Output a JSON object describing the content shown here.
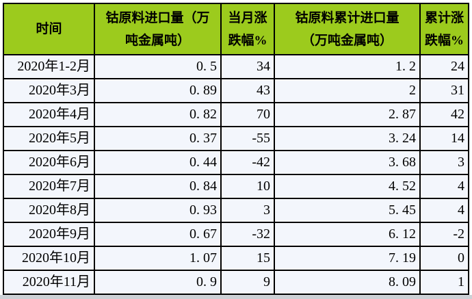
{
  "table": {
    "columns": [
      {
        "label": "时间"
      },
      {
        "label": "钴原料进口量（万\n吨金属吨）"
      },
      {
        "label": "当月涨\n跌幅%"
      },
      {
        "label": "钴原料累计进口量\n（万吨金属吨）"
      },
      {
        "label": "累计涨\n跌幅%"
      }
    ],
    "rows": [
      [
        "2020年1-2月",
        "0. 5",
        "34",
        "1. 2",
        "24"
      ],
      [
        "2020年3月",
        "0. 89",
        "43",
        "2",
        "31"
      ],
      [
        "2020年4月",
        "0. 82",
        "70",
        "2. 87",
        "42"
      ],
      [
        "2020年5月",
        "0. 37",
        "-55",
        "3. 24",
        "14"
      ],
      [
        "2020年6月",
        "0. 44",
        "-42",
        "3. 68",
        "3"
      ],
      [
        "2020年7月",
        "0. 84",
        "10",
        "4. 52",
        "4"
      ],
      [
        "2020年8月",
        "0. 93",
        "3",
        "5. 45",
        "4"
      ],
      [
        "2020年9月",
        "0. 67",
        "-32",
        "6. 12",
        "-2"
      ],
      [
        "2020年10月",
        "1. 07",
        "15",
        "7. 19",
        "0"
      ],
      [
        "2020年11月",
        "0. 9",
        "9",
        "8. 09",
        "1"
      ]
    ]
  },
  "chart_data": {
    "type": "table",
    "title": "",
    "columns": [
      "时间",
      "钴原料进口量（万吨金属吨）",
      "当月涨跌幅%",
      "钴原料累计进口量（万吨金属吨）",
      "累计涨跌幅%"
    ],
    "rows": [
      [
        "2020年1-2月",
        0.5,
        34,
        1.2,
        24
      ],
      [
        "2020年3月",
        0.89,
        43,
        2,
        31
      ],
      [
        "2020年4月",
        0.82,
        70,
        2.87,
        42
      ],
      [
        "2020年5月",
        0.37,
        -55,
        3.24,
        14
      ],
      [
        "2020年6月",
        0.44,
        -42,
        3.68,
        3
      ],
      [
        "2020年7月",
        0.84,
        10,
        4.52,
        4
      ],
      [
        "2020年8月",
        0.93,
        3,
        5.45,
        4
      ],
      [
        "2020年9月",
        0.67,
        -32,
        6.12,
        -2
      ],
      [
        "2020年10月",
        1.07,
        15,
        7.19,
        0
      ],
      [
        "2020年11月",
        0.9,
        9,
        8.09,
        1
      ]
    ]
  },
  "colors": {
    "header_bg": "#9CCB1D",
    "row_bg": "#F3F6FC",
    "border": "#000000",
    "bottom_strip": "#CDD1D6",
    "text": "#000000"
  }
}
